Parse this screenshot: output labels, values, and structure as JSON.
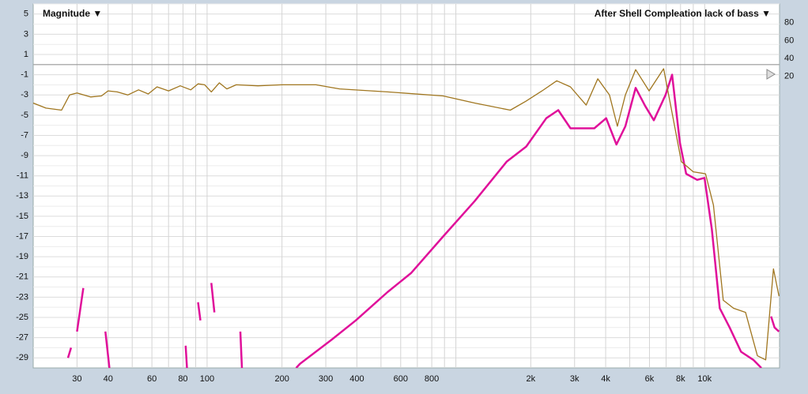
{
  "chart_data": {
    "type": "line",
    "y_label": "Magnitude ▼",
    "legend_label": "After Shell Compleation lack of bass ▼",
    "log_x": true,
    "grid": true,
    "xlim": [
      20,
      20000
    ],
    "xticks": [
      30,
      40,
      60,
      80,
      100,
      200,
      300,
      400,
      600,
      800,
      {
        "value": 2000,
        "label": "2k"
      },
      {
        "value": 3000,
        "label": "3k"
      },
      {
        "value": 4000,
        "label": "4k"
      },
      {
        "value": 6000,
        "label": "6k"
      },
      {
        "value": 8000,
        "label": "8k"
      },
      {
        "value": 10000,
        "label": "10k"
      }
    ],
    "x_minor_ticks": [
      50,
      70,
      90,
      500,
      700,
      900,
      1000,
      5000,
      7000,
      9000
    ],
    "ylim": [
      -30,
      6
    ],
    "yticks": [
      5,
      3,
      1,
      -1,
      -3,
      -5,
      -7,
      -9,
      -11,
      -13,
      -15,
      -17,
      -19,
      -21,
      -23,
      -25,
      -27,
      -29
    ],
    "y2lim": [
      -306,
      101
    ],
    "y2ticks": [
      80,
      60,
      40,
      20
    ],
    "reference_line": 0,
    "series": [
      {
        "color": "#a0761f",
        "x": [
          20,
          22.5,
          26,
          28,
          30,
          34,
          37.6,
          40,
          43.5,
          48,
          53,
          58,
          62.9,
          70,
          78,
          86,
          92,
          97.8,
          104,
          112,
          120,
          131,
          160,
          200,
          274,
          341,
          531,
          889,
          1190,
          1656,
          1918,
          2220,
          2543,
          2887,
          3340,
          3720,
          4145,
          4460,
          4800,
          5280,
          5980,
          6840,
          7510,
          8060,
          9000,
          10080,
          10850,
          11880,
          13060,
          14600,
          16300,
          17600,
          18900,
          19900
        ],
        "values": [
          -3.8,
          -4.3,
          -4.5,
          -3.0,
          -2.8,
          -3.2,
          -3.1,
          -2.6,
          -2.7,
          -3.0,
          -2.5,
          -2.9,
          -2.2,
          -2.6,
          -2.1,
          -2.5,
          -1.9,
          -2.0,
          -2.7,
          -1.8,
          -2.4,
          -2.0,
          -2.1,
          -2.0,
          -2.0,
          -2.4,
          -2.7,
          -3.1,
          -3.8,
          -4.5,
          -3.6,
          -2.6,
          -1.6,
          -2.2,
          -4.0,
          -1.4,
          -3.0,
          -6.1,
          -3.0,
          -0.5,
          -2.6,
          -0.4,
          -5.6,
          -9.6,
          -10.6,
          -10.8,
          -13.9,
          -23.3,
          -24.1,
          -24.5,
          -28.8,
          -29.2,
          -20.2,
          -22.9
        ]
      },
      {
        "color": "#e0109a",
        "x": [
          27.6,
          28.4,
          null,
          30,
          31.8,
          null,
          39,
          40.5,
          null,
          82,
          83,
          null,
          92,
          94,
          null,
          104,
          107,
          null,
          136,
          138,
          null,
          228,
          236,
          317,
          396,
          531,
          662,
          889,
          1190,
          1600,
          1918,
          2310,
          2580,
          2890,
          3600,
          4020,
          4420,
          4800,
          5280,
          5770,
          6250,
          6960,
          7400,
          7950,
          8430,
          9330,
          9990,
          10690,
          11500,
          12600,
          14000,
          15700,
          16900,
          null,
          18500,
          19100,
          19900
        ],
        "values": [
          -29,
          -28,
          null,
          -26.4,
          -22.1,
          null,
          -26.4,
          -30,
          null,
          -27.8,
          -30,
          null,
          -23.5,
          -25.3,
          null,
          -21.6,
          -24.5,
          null,
          -26.4,
          -30,
          null,
          -30,
          -29.6,
          -27.2,
          -25.3,
          -22.5,
          -20.6,
          -17.0,
          -13.5,
          -9.6,
          -8.1,
          -5.3,
          -4.5,
          -6.3,
          -6.3,
          -5.3,
          -7.9,
          -6.1,
          -2.3,
          -4.1,
          -5.5,
          -3.0,
          -1.0,
          -7.7,
          -10.8,
          -11.4,
          -11.2,
          -16.3,
          -24.1,
          -26.0,
          -28.4,
          -29.2,
          -30,
          null,
          -24.9,
          -26.0,
          -26.4
        ]
      }
    ]
  }
}
